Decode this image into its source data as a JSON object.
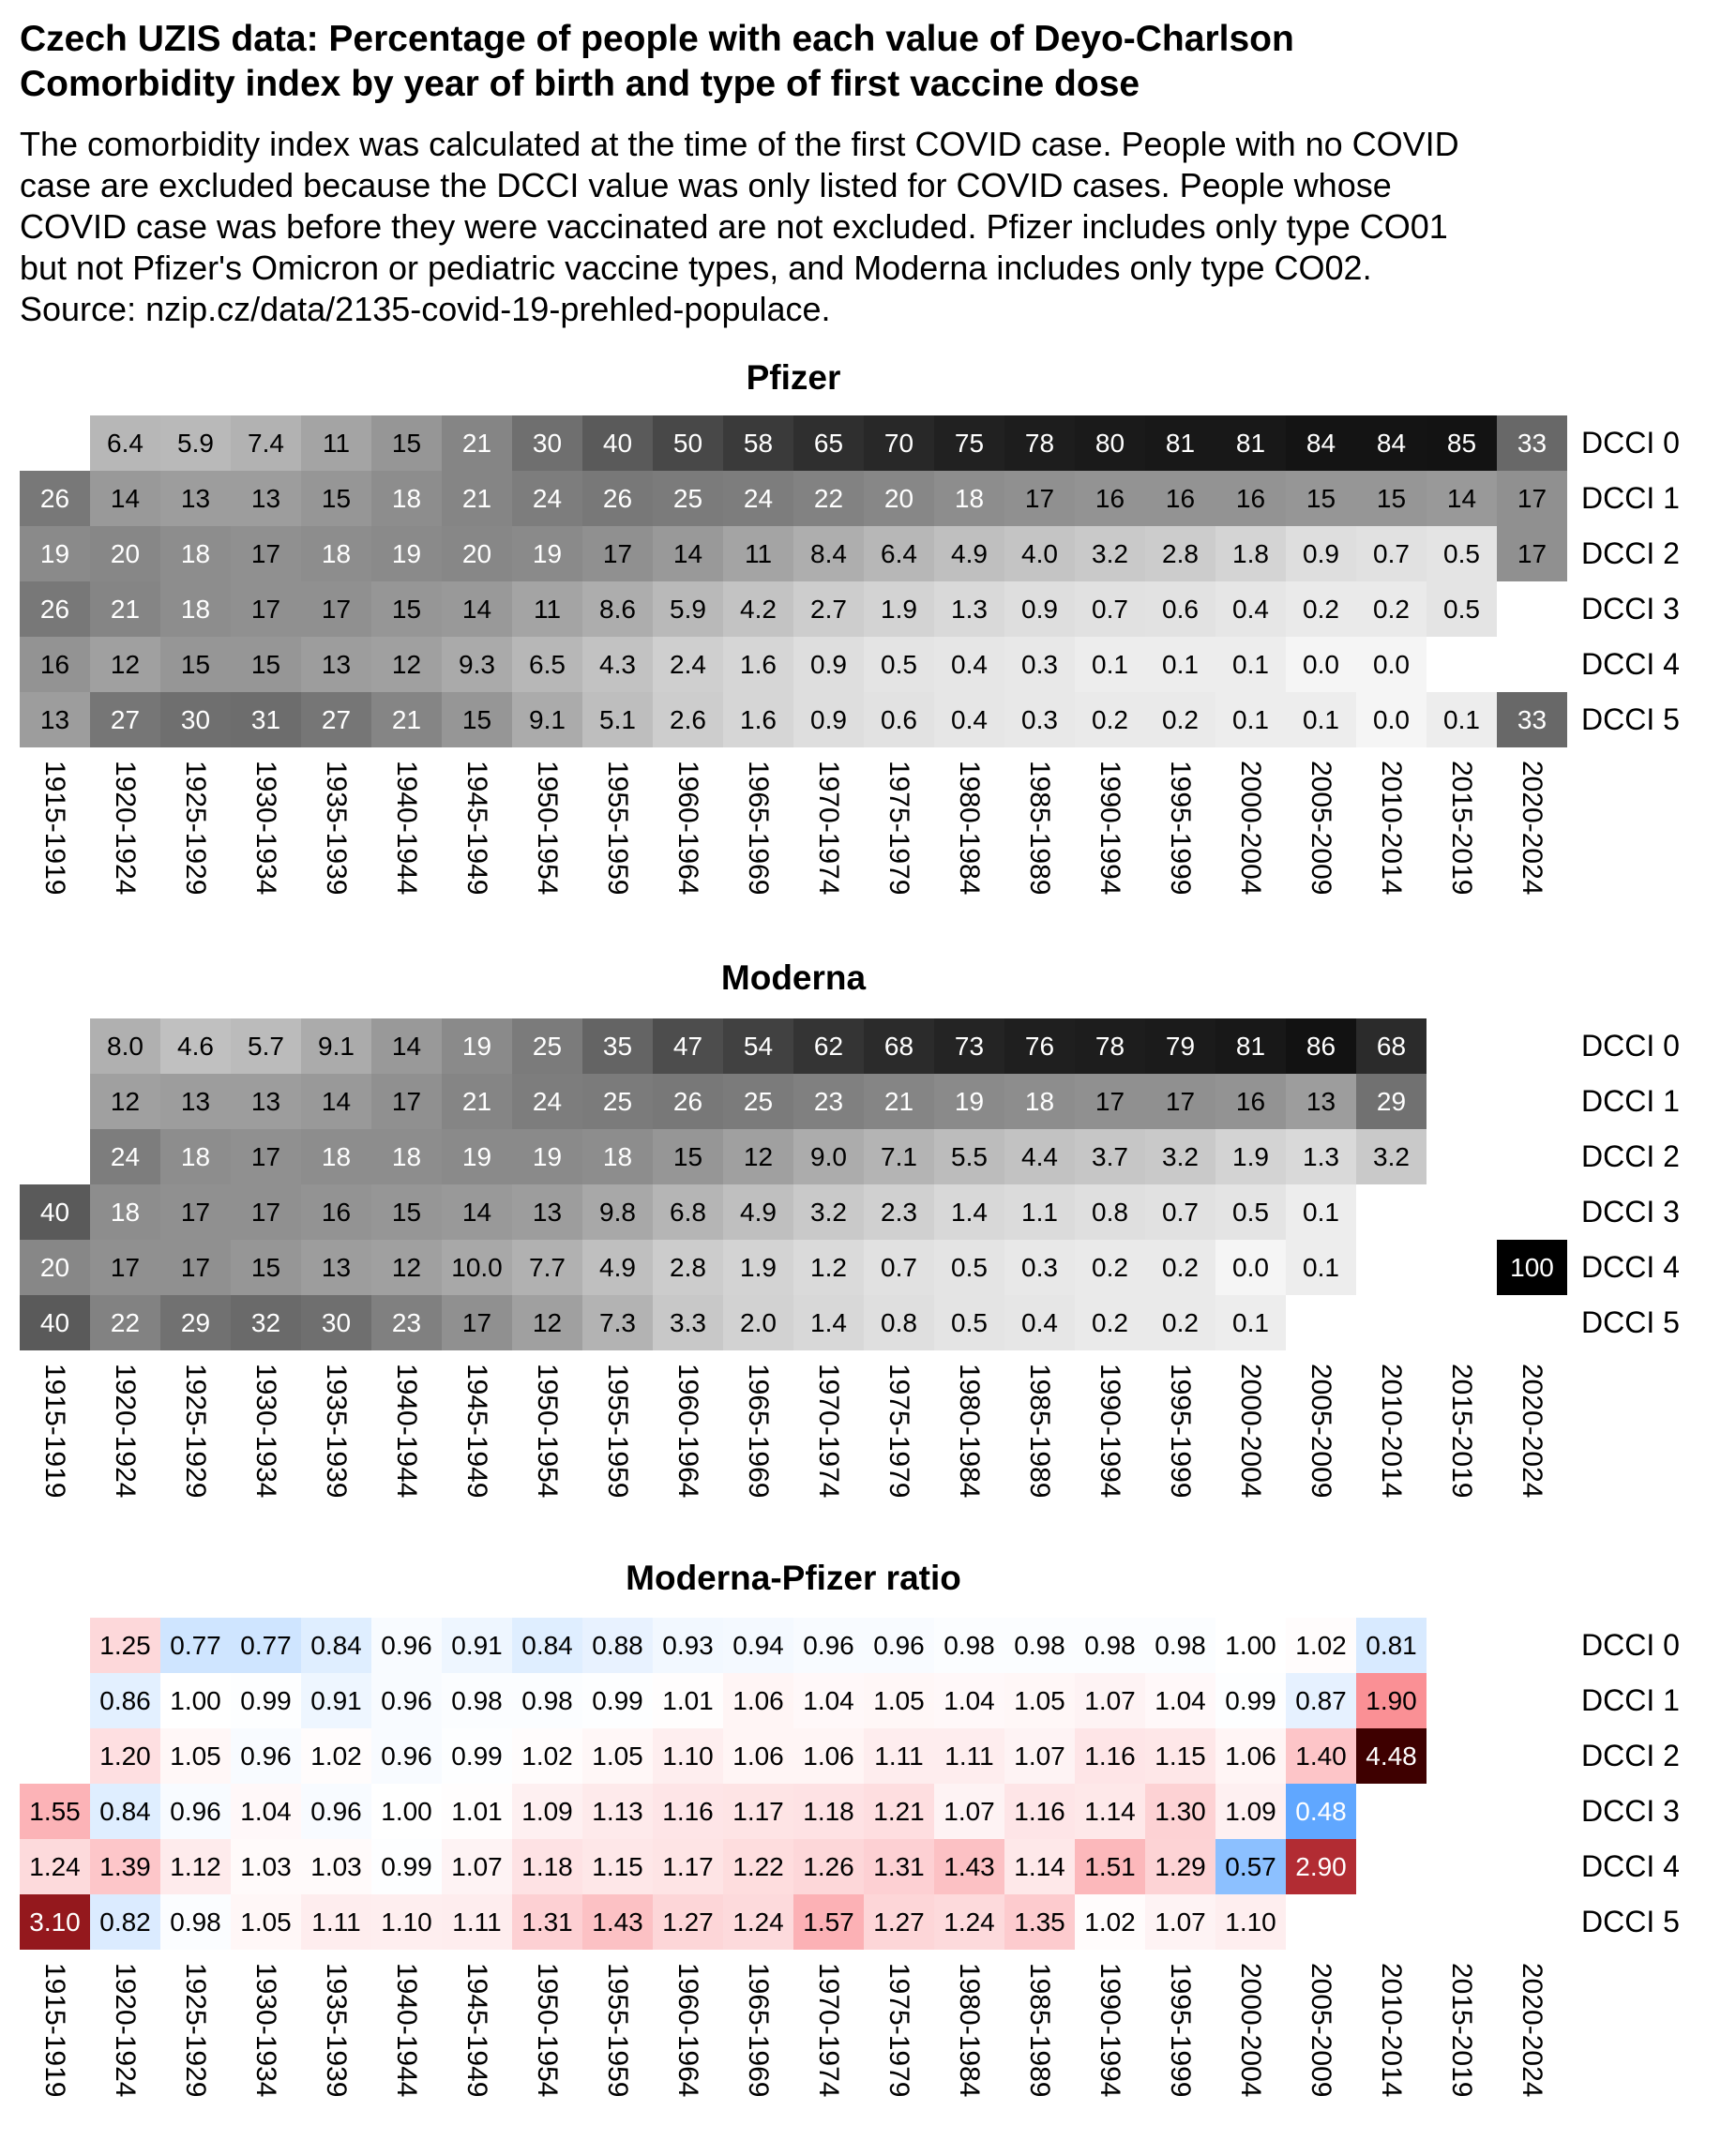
{
  "title_lines": [
    "Czech UZIS data: Percentage of people with each value of Deyo-Charlson",
    "Comorbidity index by year of birth and type of first vaccine dose"
  ],
  "subtitle_lines": [
    "The comorbidity index was calculated at the time of the first COVID case. People with no COVID",
    "case are excluded because the DCCI value was only listed for COVID cases. People whose",
    "COVID case was before they were vaccinated are not excluded. Pfizer includes only type CO01",
    "but not Pfizer's Omicron or pediatric vaccine types, and Moderna includes only type CO02.",
    "Source: nzip.cz/data/2135-covid-19-prehled-populace."
  ],
  "chart_data": [
    {
      "type": "heatmap",
      "title": "Pfizer",
      "colorscale": "grayscale",
      "x": [
        "1915-1919",
        "1920-1924",
        "1925-1929",
        "1930-1934",
        "1935-1939",
        "1940-1944",
        "1945-1949",
        "1950-1954",
        "1955-1959",
        "1960-1964",
        "1965-1969",
        "1970-1974",
        "1975-1979",
        "1980-1984",
        "1985-1989",
        "1990-1994",
        "1995-1999",
        "2000-2004",
        "2005-2009",
        "2010-2014",
        "2015-2019",
        "2020-2024"
      ],
      "y": [
        "DCCI 0",
        "DCCI 1",
        "DCCI 2",
        "DCCI 3",
        "DCCI 4",
        "DCCI 5"
      ],
      "values": [
        [
          null,
          "6.4",
          "5.9",
          "7.4",
          "11",
          "15",
          "21",
          "30",
          "40",
          "50",
          "58",
          "65",
          "70",
          "75",
          "78",
          "80",
          "81",
          "81",
          "84",
          "84",
          "85",
          "33"
        ],
        [
          "26",
          "14",
          "13",
          "13",
          "15",
          "18",
          "21",
          "24",
          "26",
          "25",
          "24",
          "22",
          "20",
          "18",
          "17",
          "16",
          "16",
          "16",
          "15",
          "15",
          "14",
          "17"
        ],
        [
          "19",
          "20",
          "18",
          "17",
          "18",
          "19",
          "20",
          "19",
          "17",
          "14",
          "11",
          "8.4",
          "6.4",
          "4.9",
          "4.0",
          "3.2",
          "2.8",
          "1.8",
          "0.9",
          "0.7",
          "0.5",
          "17"
        ],
        [
          "26",
          "21",
          "18",
          "17",
          "17",
          "15",
          "14",
          "11",
          "8.6",
          "5.9",
          "4.2",
          "2.7",
          "1.9",
          "1.3",
          "0.9",
          "0.7",
          "0.6",
          "0.4",
          "0.2",
          "0.2",
          "0.5",
          null
        ],
        [
          "16",
          "12",
          "15",
          "15",
          "13",
          "12",
          "9.3",
          "6.5",
          "4.3",
          "2.4",
          "1.6",
          "0.9",
          "0.5",
          "0.4",
          "0.3",
          "0.1",
          "0.1",
          "0.1",
          "0.0",
          "0.0",
          null,
          null
        ],
        [
          "13",
          "27",
          "30",
          "31",
          "27",
          "21",
          "15",
          "9.1",
          "5.1",
          "2.6",
          "1.6",
          "0.9",
          "0.6",
          "0.4",
          "0.3",
          "0.2",
          "0.2",
          "0.1",
          "0.1",
          "0.0",
          "0.1",
          "33"
        ]
      ]
    },
    {
      "type": "heatmap",
      "title": "Moderna",
      "colorscale": "grayscale",
      "x": [
        "1915-1919",
        "1920-1924",
        "1925-1929",
        "1930-1934",
        "1935-1939",
        "1940-1944",
        "1945-1949",
        "1950-1954",
        "1955-1959",
        "1960-1964",
        "1965-1969",
        "1970-1974",
        "1975-1979",
        "1980-1984",
        "1985-1989",
        "1990-1994",
        "1995-1999",
        "2000-2004",
        "2005-2009",
        "2010-2014",
        "2015-2019",
        "2020-2024"
      ],
      "y": [
        "DCCI 0",
        "DCCI 1",
        "DCCI 2",
        "DCCI 3",
        "DCCI 4",
        "DCCI 5"
      ],
      "values": [
        [
          null,
          "8.0",
          "4.6",
          "5.7",
          "9.1",
          "14",
          "19",
          "25",
          "35",
          "47",
          "54",
          "62",
          "68",
          "73",
          "76",
          "78",
          "79",
          "81",
          "86",
          "68",
          null,
          null
        ],
        [
          null,
          "12",
          "13",
          "13",
          "14",
          "17",
          "21",
          "24",
          "25",
          "26",
          "25",
          "23",
          "21",
          "19",
          "18",
          "17",
          "17",
          "16",
          "13",
          "29",
          null,
          null
        ],
        [
          null,
          "24",
          "18",
          "17",
          "18",
          "18",
          "19",
          "19",
          "18",
          "15",
          "12",
          "9.0",
          "7.1",
          "5.5",
          "4.4",
          "3.7",
          "3.2",
          "1.9",
          "1.3",
          "3.2",
          null,
          null
        ],
        [
          "40",
          "18",
          "17",
          "17",
          "16",
          "15",
          "14",
          "13",
          "9.8",
          "6.8",
          "4.9",
          "3.2",
          "2.3",
          "1.4",
          "1.1",
          "0.8",
          "0.7",
          "0.5",
          "0.1",
          null,
          null,
          null
        ],
        [
          "20",
          "17",
          "17",
          "15",
          "13",
          "12",
          "10.0",
          "7.7",
          "4.9",
          "2.8",
          "1.9",
          "1.2",
          "0.7",
          "0.5",
          "0.3",
          "0.2",
          "0.2",
          "0.0",
          "0.1",
          null,
          null,
          "100"
        ],
        [
          "40",
          "22",
          "29",
          "32",
          "30",
          "23",
          "17",
          "12",
          "7.3",
          "3.3",
          "2.0",
          "1.4",
          "0.8",
          "0.5",
          "0.4",
          "0.2",
          "0.2",
          "0.1",
          null,
          null,
          null,
          null
        ]
      ]
    },
    {
      "type": "heatmap",
      "title": "Moderna-Pfizer ratio",
      "colorscale": "diverging-blue-white-red",
      "x": [
        "1915-1919",
        "1920-1924",
        "1925-1929",
        "1930-1934",
        "1935-1939",
        "1940-1944",
        "1945-1949",
        "1950-1954",
        "1955-1959",
        "1960-1964",
        "1965-1969",
        "1970-1974",
        "1975-1979",
        "1980-1984",
        "1985-1989",
        "1990-1994",
        "1995-1999",
        "2000-2004",
        "2005-2009",
        "2010-2014",
        "2015-2019",
        "2020-2024"
      ],
      "y": [
        "DCCI 0",
        "DCCI 1",
        "DCCI 2",
        "DCCI 3",
        "DCCI 4",
        "DCCI 5"
      ],
      "values": [
        [
          null,
          "1.25",
          "0.77",
          "0.77",
          "0.84",
          "0.96",
          "0.91",
          "0.84",
          "0.88",
          "0.93",
          "0.94",
          "0.96",
          "0.96",
          "0.98",
          "0.98",
          "0.98",
          "0.98",
          "1.00",
          "1.02",
          "0.81",
          null,
          null
        ],
        [
          null,
          "0.86",
          "1.00",
          "0.99",
          "0.91",
          "0.96",
          "0.98",
          "0.98",
          "0.99",
          "1.01",
          "1.06",
          "1.04",
          "1.05",
          "1.04",
          "1.05",
          "1.07",
          "1.04",
          "0.99",
          "0.87",
          "1.90",
          null,
          null
        ],
        [
          null,
          "1.20",
          "1.05",
          "0.96",
          "1.02",
          "0.96",
          "0.99",
          "1.02",
          "1.05",
          "1.10",
          "1.06",
          "1.06",
          "1.11",
          "1.11",
          "1.07",
          "1.16",
          "1.15",
          "1.06",
          "1.40",
          "4.48",
          null,
          null
        ],
        [
          "1.55",
          "0.84",
          "0.96",
          "1.04",
          "0.96",
          "1.00",
          "1.01",
          "1.09",
          "1.13",
          "1.16",
          "1.17",
          "1.18",
          "1.21",
          "1.07",
          "1.16",
          "1.14",
          "1.30",
          "1.09",
          "0.48",
          null,
          null,
          null
        ],
        [
          "1.24",
          "1.39",
          "1.12",
          "1.03",
          "1.03",
          "0.99",
          "1.07",
          "1.18",
          "1.15",
          "1.17",
          "1.22",
          "1.26",
          "1.31",
          "1.43",
          "1.14",
          "1.51",
          "1.29",
          "0.57",
          "2.90",
          null,
          null,
          null
        ],
        [
          "3.10",
          "0.82",
          "0.98",
          "1.05",
          "1.11",
          "1.10",
          "1.11",
          "1.31",
          "1.43",
          "1.27",
          "1.24",
          "1.57",
          "1.27",
          "1.24",
          "1.35",
          "1.02",
          "1.07",
          "1.10",
          null,
          null,
          null,
          null
        ]
      ]
    }
  ]
}
